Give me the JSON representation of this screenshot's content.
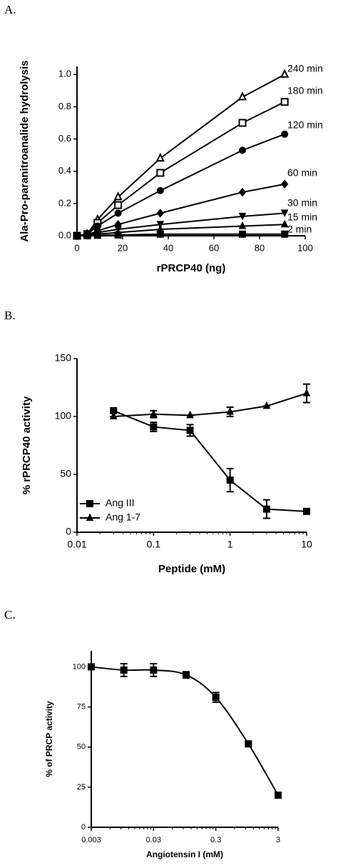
{
  "chart_data": [
    {
      "type": "line",
      "panel": "A.",
      "y_label": "Ala-Pro-paranitroanalide hydrolysis",
      "x_label": "rPRCP40 (ng)",
      "x": [
        0,
        4.5,
        9,
        18,
        36.5,
        72.5,
        91
      ],
      "series": [
        {
          "name": "240 min",
          "marker": "triangle-open",
          "color": "#000000",
          "values": [
            0,
            0.01,
            0.1,
            0.24,
            0.48,
            0.86,
            1.0
          ]
        },
        {
          "name": "180 min",
          "marker": "square-open",
          "color": "#000000",
          "values": [
            0,
            0.01,
            0.08,
            0.19,
            0.39,
            0.7,
            0.83
          ]
        },
        {
          "name": "120 min",
          "marker": "circle",
          "color": "#000000",
          "values": [
            0,
            0.01,
            0.06,
            0.14,
            0.28,
            0.53,
            0.63
          ]
        },
        {
          "name": "60 min",
          "marker": "diamond",
          "color": "#000000",
          "values": [
            0,
            0.005,
            0.03,
            0.07,
            0.14,
            0.27,
            0.32
          ]
        },
        {
          "name": "30 min",
          "marker": "triangle-down",
          "color": "#000000",
          "values": [
            0,
            0.003,
            0.02,
            0.04,
            0.07,
            0.12,
            0.14
          ]
        },
        {
          "name": "15 min",
          "marker": "triangle",
          "color": "#000000",
          "values": [
            0,
            0.002,
            0.01,
            0.02,
            0.04,
            0.06,
            0.07
          ]
        },
        {
          "name": "2 min",
          "marker": "square",
          "color": "#000000",
          "values": [
            0,
            0,
            0.003,
            0.005,
            0.01,
            0.01,
            0.01
          ]
        }
      ],
      "xlim": [
        0,
        100
      ],
      "xticks": [
        0,
        20,
        40,
        60,
        80,
        100
      ],
      "ylim": [
        0,
        1.05
      ],
      "yticks": [
        {
          "value": 0,
          "label": "0.0"
        },
        {
          "value": 0.2,
          "label": "0.2"
        },
        {
          "value": 0.4,
          "label": "0.4"
        },
        {
          "value": 0.6,
          "label": "0.6"
        },
        {
          "value": 0.8,
          "label": "0.8"
        },
        {
          "value": 1.0,
          "label": "1.0"
        }
      ],
      "grid": false
    },
    {
      "type": "line",
      "panel": "B.",
      "y_label": "% rPRCP40 activity",
      "x_label": "Peptide (mM)",
      "x": [
        0.03,
        0.1,
        0.3,
        1,
        3,
        10
      ],
      "xscale": "log",
      "series": [
        {
          "name": "Ang III",
          "marker": "square",
          "color": "#000000",
          "values": [
            105,
            91,
            88,
            45,
            20,
            18
          ],
          "errors": [
            0,
            4,
            5,
            10,
            8,
            0
          ]
        },
        {
          "name": "Ang 1-7",
          "marker": "triangle",
          "color": "#000000",
          "values": [
            100,
            102,
            101,
            104,
            109,
            120
          ],
          "errors": [
            0,
            3,
            0,
            4,
            0,
            8
          ]
        }
      ],
      "xlim": [
        0.01,
        10
      ],
      "xticks": [
        0.01,
        0.1,
        1,
        10
      ],
      "ylim": [
        0,
        150
      ],
      "yticks": [
        0,
        50,
        100,
        150
      ],
      "legend": "lower left",
      "grid": false
    },
    {
      "type": "line",
      "panel": "C.",
      "y_label": "% of PRCP activity",
      "x_label": "Angiotensin I (mM)",
      "x": [
        0.003,
        0.01,
        0.03,
        0.1,
        0.3,
        1,
        3
      ],
      "xscale": "log",
      "smooth": true,
      "marker": "square",
      "color": "#000000",
      "values": [
        100,
        98,
        98,
        95,
        81,
        52,
        20
      ],
      "errors": [
        0,
        4,
        4,
        2,
        3,
        0,
        0
      ],
      "xlim": [
        0.003,
        3
      ],
      "xticks": [
        0.003,
        0.03,
        0.3,
        3
      ],
      "ylim": [
        0,
        110
      ],
      "yticks": [
        0,
        25,
        50,
        75,
        100
      ],
      "grid": false
    }
  ]
}
